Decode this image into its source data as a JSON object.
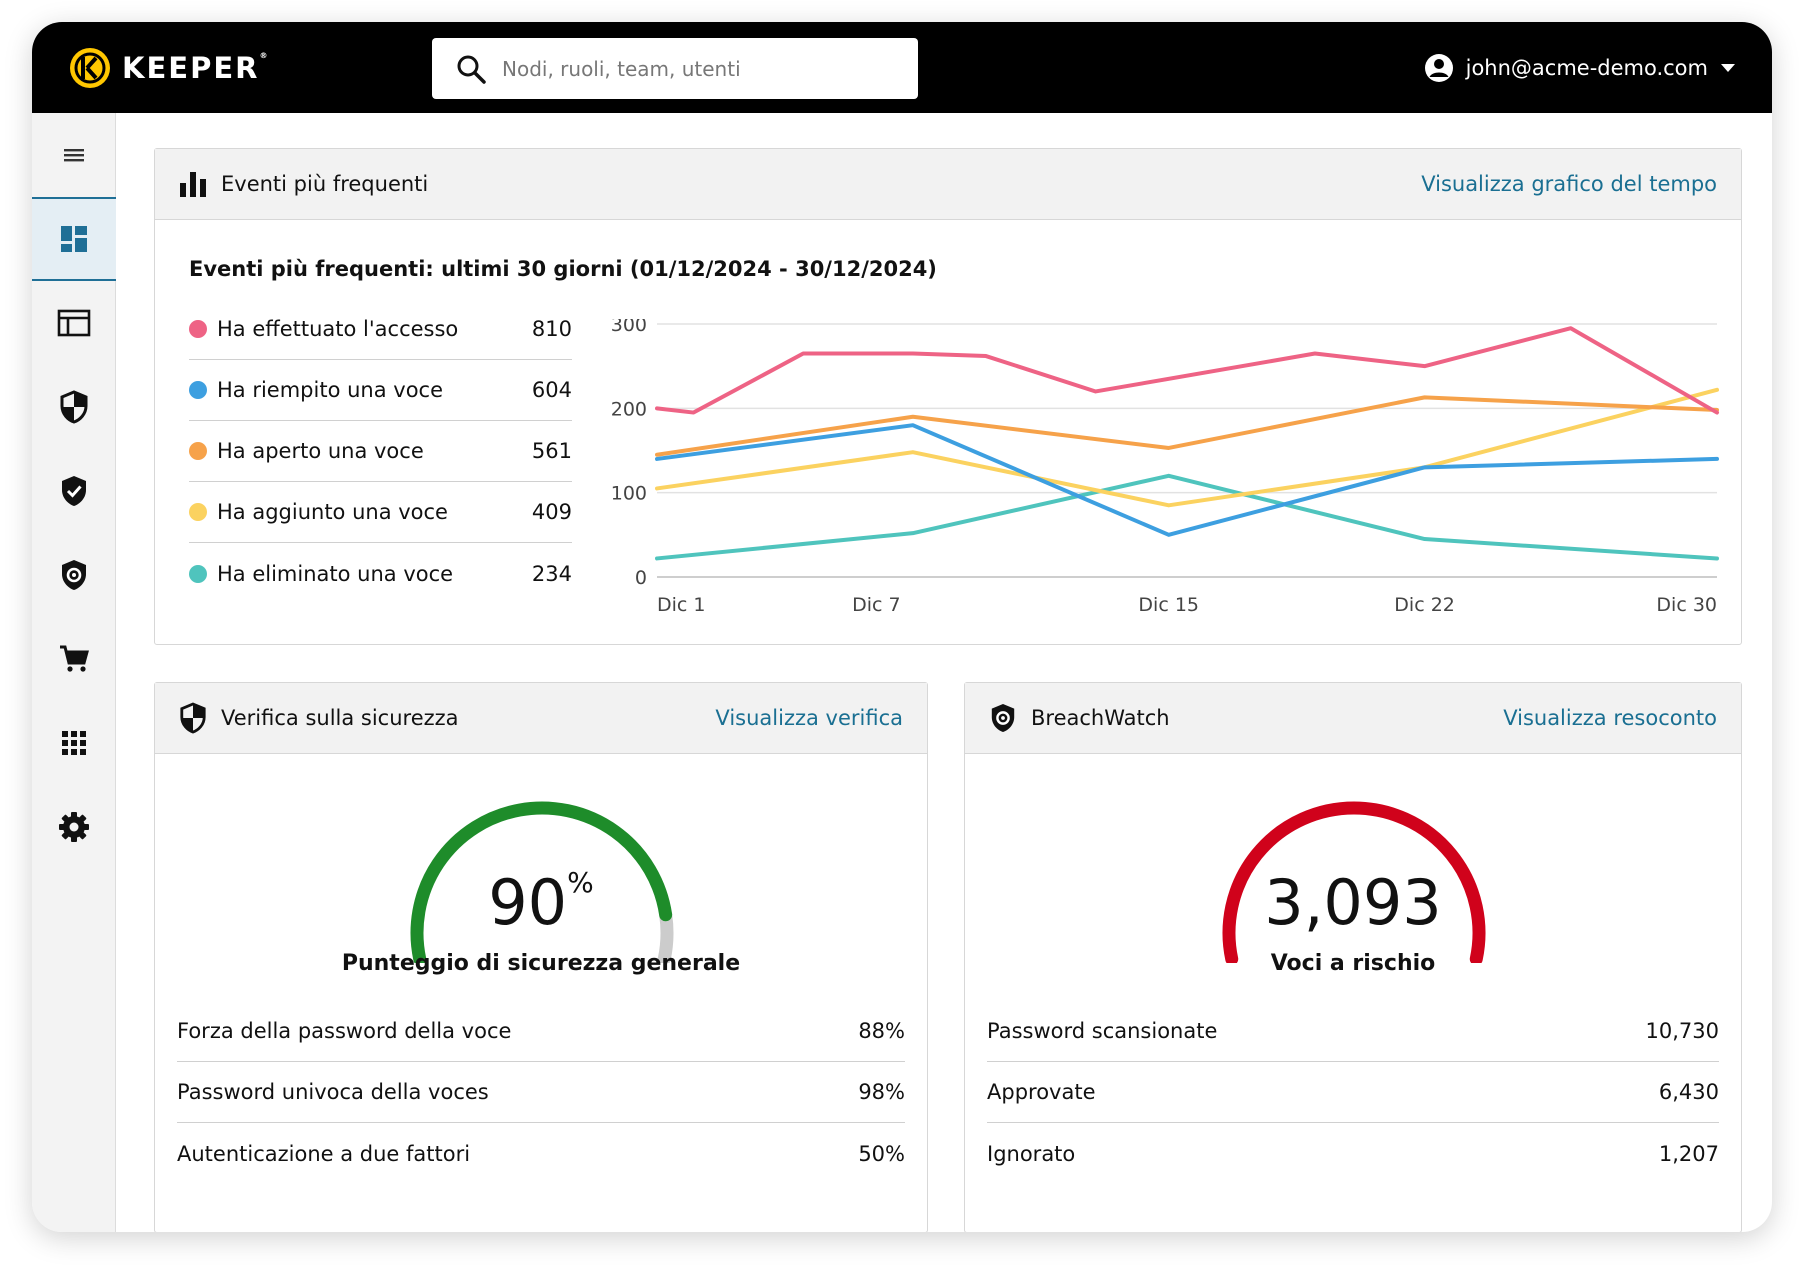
{
  "brand": {
    "name": "KEEPER",
    "mark": "®"
  },
  "search": {
    "placeholder": "Nodi, ruoli, team, utenti"
  },
  "user": {
    "email": "john@acme-demo.com"
  },
  "sidebar": {
    "items": [
      {
        "icon": "menu-icon"
      },
      {
        "icon": "dashboard-icon",
        "active": true
      },
      {
        "icon": "admin-console-icon"
      },
      {
        "icon": "shield-half-icon"
      },
      {
        "icon": "shield-check-icon"
      },
      {
        "icon": "breachwatch-icon"
      },
      {
        "icon": "cart-icon"
      },
      {
        "icon": "apps-grid-icon"
      },
      {
        "icon": "gear-icon"
      }
    ]
  },
  "events_card": {
    "title": "Eventi più frequenti",
    "link": "Visualizza grafico del tempo",
    "subtitle": "Eventi più frequenti: ultimi 30 giorni (01/12/2024 - 30/12/2024)",
    "legend": [
      {
        "label": "Ha effettuato l'accesso",
        "value": "810",
        "color": "#ee6385"
      },
      {
        "label": "Ha riempito una voce",
        "value": "604",
        "color": "#3d9fe0"
      },
      {
        "label": "Ha aperto una voce",
        "value": "561",
        "color": "#f6a24a"
      },
      {
        "label": "Ha aggiunto una voce",
        "value": "409",
        "color": "#fbd260"
      },
      {
        "label": "Ha eliminato una voce",
        "value": "234",
        "color": "#4fc4bd"
      }
    ]
  },
  "chart_data": {
    "type": "line",
    "x_ticks": [
      {
        "day": 1,
        "label": "Dic 1"
      },
      {
        "day": 7,
        "label": "Dic 7"
      },
      {
        "day": 15,
        "label": "Dic 15"
      },
      {
        "day": 22,
        "label": "Dic 22"
      },
      {
        "day": 30,
        "label": "Dic 30"
      }
    ],
    "y_ticks": [
      "0",
      "100",
      "200",
      "300"
    ],
    "xlim": [
      1,
      30
    ],
    "ylim": [
      0,
      300
    ],
    "grid": true,
    "series": [
      {
        "name": "Ha effettuato l'accesso",
        "color": "#ee6385",
        "points": [
          [
            1,
            200
          ],
          [
            2,
            195
          ],
          [
            5,
            265
          ],
          [
            8,
            265
          ],
          [
            10,
            262
          ],
          [
            13,
            220
          ],
          [
            19,
            265
          ],
          [
            22,
            250
          ],
          [
            26,
            295
          ],
          [
            30,
            195
          ]
        ]
      },
      {
        "name": "Ha riempito una voce",
        "color": "#3d9fe0",
        "points": [
          [
            1,
            140
          ],
          [
            8,
            180
          ],
          [
            15,
            50
          ],
          [
            22,
            130
          ],
          [
            30,
            140
          ]
        ]
      },
      {
        "name": "Ha aperto una voce",
        "color": "#f6a24a",
        "points": [
          [
            1,
            145
          ],
          [
            8,
            190
          ],
          [
            15,
            153
          ],
          [
            22,
            213
          ],
          [
            30,
            198
          ]
        ]
      },
      {
        "name": "Ha aggiunto una voce",
        "color": "#fbd260",
        "points": [
          [
            1,
            105
          ],
          [
            8,
            148
          ],
          [
            15,
            85
          ],
          [
            22,
            130
          ],
          [
            30,
            222
          ]
        ]
      },
      {
        "name": "Ha eliminato una voce",
        "color": "#4fc4bd",
        "points": [
          [
            1,
            22
          ],
          [
            8,
            52
          ],
          [
            15,
            120
          ],
          [
            22,
            45
          ],
          [
            30,
            22
          ]
        ]
      }
    ]
  },
  "security_card": {
    "title": "Verifica sulla sicurezza",
    "link": "Visualizza verifica",
    "score": "90",
    "score_unit": "%",
    "score_fraction": 0.9,
    "gauge_color": "#1e8c2a",
    "caption": "Punteggio di sicurezza generale",
    "rows": [
      {
        "label": "Forza della password della voce",
        "value": "88%"
      },
      {
        "label": "Password univoca della voces",
        "value": "98%"
      },
      {
        "label": "Autenticazione a due fattori",
        "value": "50%"
      }
    ]
  },
  "breach_card": {
    "title": "BreachWatch",
    "link": "Visualizza resoconto",
    "count": "3,093",
    "gauge_color": "#d0021b",
    "caption": "Voci a rischio",
    "rows": [
      {
        "label": "Password scansionate",
        "value": "10,730"
      },
      {
        "label": "Approvate",
        "value": "6,430"
      },
      {
        "label": "Ignorato",
        "value": "1,207"
      }
    ]
  }
}
